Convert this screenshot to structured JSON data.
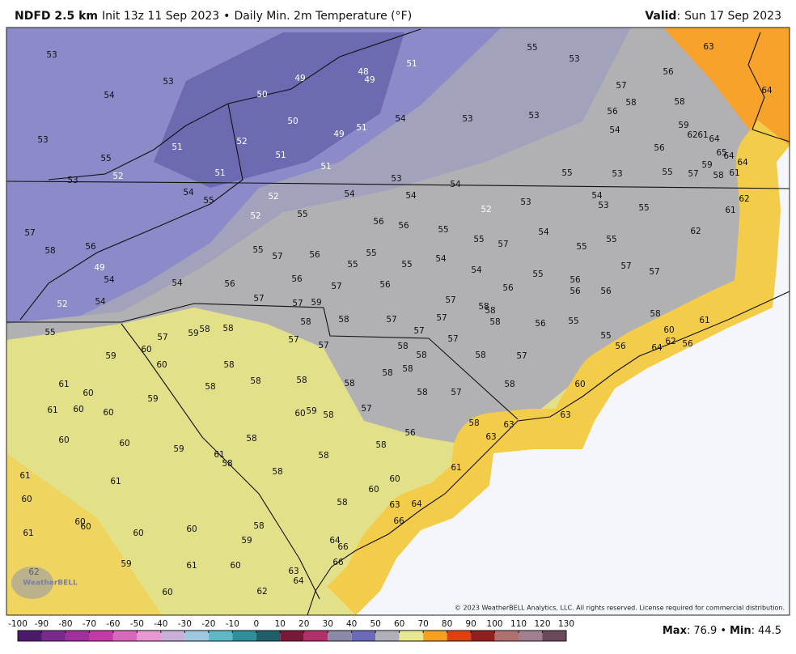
{
  "header": {
    "model": "NDFD 2.5 km",
    "init": "Init 13z 11 Sep 2023",
    "separator": "•",
    "product": "Daily Min. 2m Temperature (°F)",
    "valid_label": "Valid",
    "valid_sep": ":",
    "valid": "Sun 17 Sep 2023"
  },
  "map": {
    "labels": [
      53,
      53,
      54,
      50,
      49,
      48,
      49,
      51,
      55,
      53,
      56,
      63,
      64,
      57,
      58,
      58,
      56,
      53,
      53,
      54,
      50,
      51,
      49,
      52,
      51,
      51,
      51,
      53,
      55,
      52,
      53,
      51,
      54,
      59,
      62,
      61,
      64,
      56,
      65,
      64,
      64,
      59,
      61,
      58,
      57,
      55,
      53,
      55,
      53,
      54,
      54,
      54,
      52,
      54,
      55,
      54,
      53,
      53,
      55,
      62,
      61,
      52,
      52,
      55,
      56,
      56,
      55,
      55,
      57,
      54,
      62,
      55,
      55,
      57,
      58,
      56,
      55,
      57,
      56,
      55,
      55,
      55,
      54,
      54,
      55,
      57,
      57,
      49,
      54,
      54,
      56,
      56,
      57,
      56,
      56,
      56,
      56,
      56,
      52,
      54,
      57,
      57,
      59,
      57,
      58,
      58,
      58,
      58,
      57,
      57,
      58,
      56,
      55,
      58,
      61,
      60,
      55,
      57,
      59,
      58,
      58,
      57,
      57,
      57,
      57,
      55,
      56,
      64,
      62,
      56,
      58,
      58,
      58,
      57,
      60,
      59,
      60,
      58,
      58,
      58,
      58,
      58,
      58,
      58,
      58,
      60,
      61,
      60,
      59,
      58,
      57,
      61,
      60,
      60,
      60,
      59,
      58,
      57,
      58,
      63,
      63,
      56,
      63,
      60,
      60,
      59,
      58,
      58,
      58,
      61,
      58,
      58,
      60,
      61,
      61,
      61,
      60,
      60,
      58,
      63,
      64,
      66,
      60,
      60,
      60,
      60,
      58,
      59,
      61,
      64,
      66,
      59,
      61,
      60,
      66,
      62,
      63,
      64,
      60,
      62
    ],
    "watermark": "WeatherBELL",
    "copyright": "© 2023 WeatherBELL Analytics, LLC. All rights reserved. License required for commercial distribution."
  },
  "colorbar": {
    "ticks": [
      -100,
      -90,
      -80,
      -70,
      -60,
      -50,
      -40,
      -30,
      -20,
      -10,
      0,
      10,
      20,
      30,
      40,
      50,
      60,
      70,
      80,
      90,
      100,
      110,
      120,
      130
    ],
    "colors": [
      "#4a1a6c",
      "#7a2a8c",
      "#a0309c",
      "#c43aa8",
      "#d868bc",
      "#e898d0",
      "#c8b0d8",
      "#9fc8e0",
      "#5fb8c8",
      "#2f8e9a",
      "#1e5f6a",
      "#7a1838",
      "#b0306a",
      "#8a8aa8",
      "#6a6ab8",
      "#b0b0b8",
      "#e8e890",
      "#f5a020",
      "#e04010",
      "#902020",
      "#b07070",
      "#a08090",
      "#6a4a5a"
    ]
  },
  "footer": {
    "max_label": "Max",
    "max_sep": ":",
    "max": 76.9,
    "separator": "•",
    "min_label": "Min",
    "min_sep": ":",
    "min": 44.5
  }
}
